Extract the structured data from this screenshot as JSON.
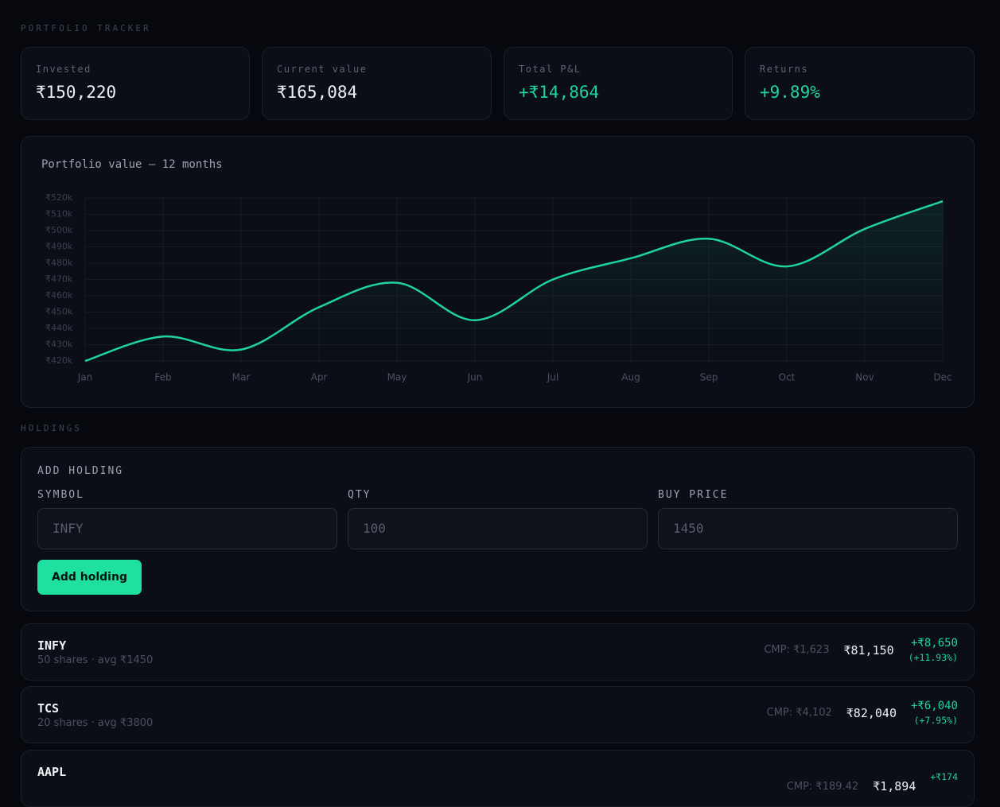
{
  "header": {
    "title": "PORTFOLIO TRACKER"
  },
  "stats": [
    {
      "label": "Invested",
      "value": "₹150,220"
    },
    {
      "label": "Current value",
      "value": "₹165,084"
    },
    {
      "label": "Total P&L",
      "value": "+₹14,864"
    },
    {
      "label": "Returns",
      "value": "+9.89%"
    }
  ],
  "chart_data": {
    "type": "line",
    "title": "Portfolio value — 12 months",
    "categories": [
      "Jan",
      "Feb",
      "Mar",
      "Apr",
      "May",
      "Jun",
      "Jul",
      "Aug",
      "Sep",
      "Oct",
      "Nov",
      "Dec"
    ],
    "series": [
      {
        "name": "Portfolio value",
        "color": "#1fd49b",
        "values": [
          420000,
          435000,
          427000,
          453000,
          468000,
          445000,
          470000,
          483000,
          495000,
          478000,
          501000,
          518000
        ]
      }
    ],
    "ylim": [
      420000,
      520000
    ],
    "yticks": [
      {
        "value": 420000,
        "label": "₹420k"
      },
      {
        "value": 430000,
        "label": "₹430k"
      },
      {
        "value": 440000,
        "label": "₹440k"
      },
      {
        "value": 450000,
        "label": "₹450k"
      },
      {
        "value": 460000,
        "label": "₹460k"
      },
      {
        "value": 470000,
        "label": "₹470k"
      },
      {
        "value": 480000,
        "label": "₹480k"
      },
      {
        "value": 490000,
        "label": "₹490k"
      },
      {
        "value": 500000,
        "label": "₹500k"
      },
      {
        "value": 510000,
        "label": "₹510k"
      },
      {
        "value": 520000,
        "label": "₹520k"
      }
    ],
    "grid": true
  },
  "holdings": {
    "title": "HOLDINGS",
    "form": {
      "title": "ADD HOLDING",
      "fields": [
        {
          "label": "SYMBOL",
          "placeholder": "INFY"
        },
        {
          "label": "QTY",
          "placeholder": "100"
        },
        {
          "label": "BUY PRICE",
          "placeholder": "1450"
        }
      ],
      "button": "Add holding"
    },
    "rows": [
      {
        "symbol": "INFY",
        "detail": "50 shares · avg ₹1450",
        "cmp": "CMP: ₹1,623",
        "value": "₹81,150",
        "pnl": "+₹8,650",
        "pct": "(+11.93%)"
      },
      {
        "symbol": "TCS",
        "detail": "20 shares · avg ₹3800",
        "cmp": "CMP: ₹4,102",
        "value": "₹82,040",
        "pnl": "+₹6,040",
        "pct": "(+7.95%)"
      },
      {
        "symbol": "AAPL",
        "cmp": "CMP: ₹189.42",
        "value": "₹1,894",
        "pnl": "+₹174"
      }
    ]
  }
}
